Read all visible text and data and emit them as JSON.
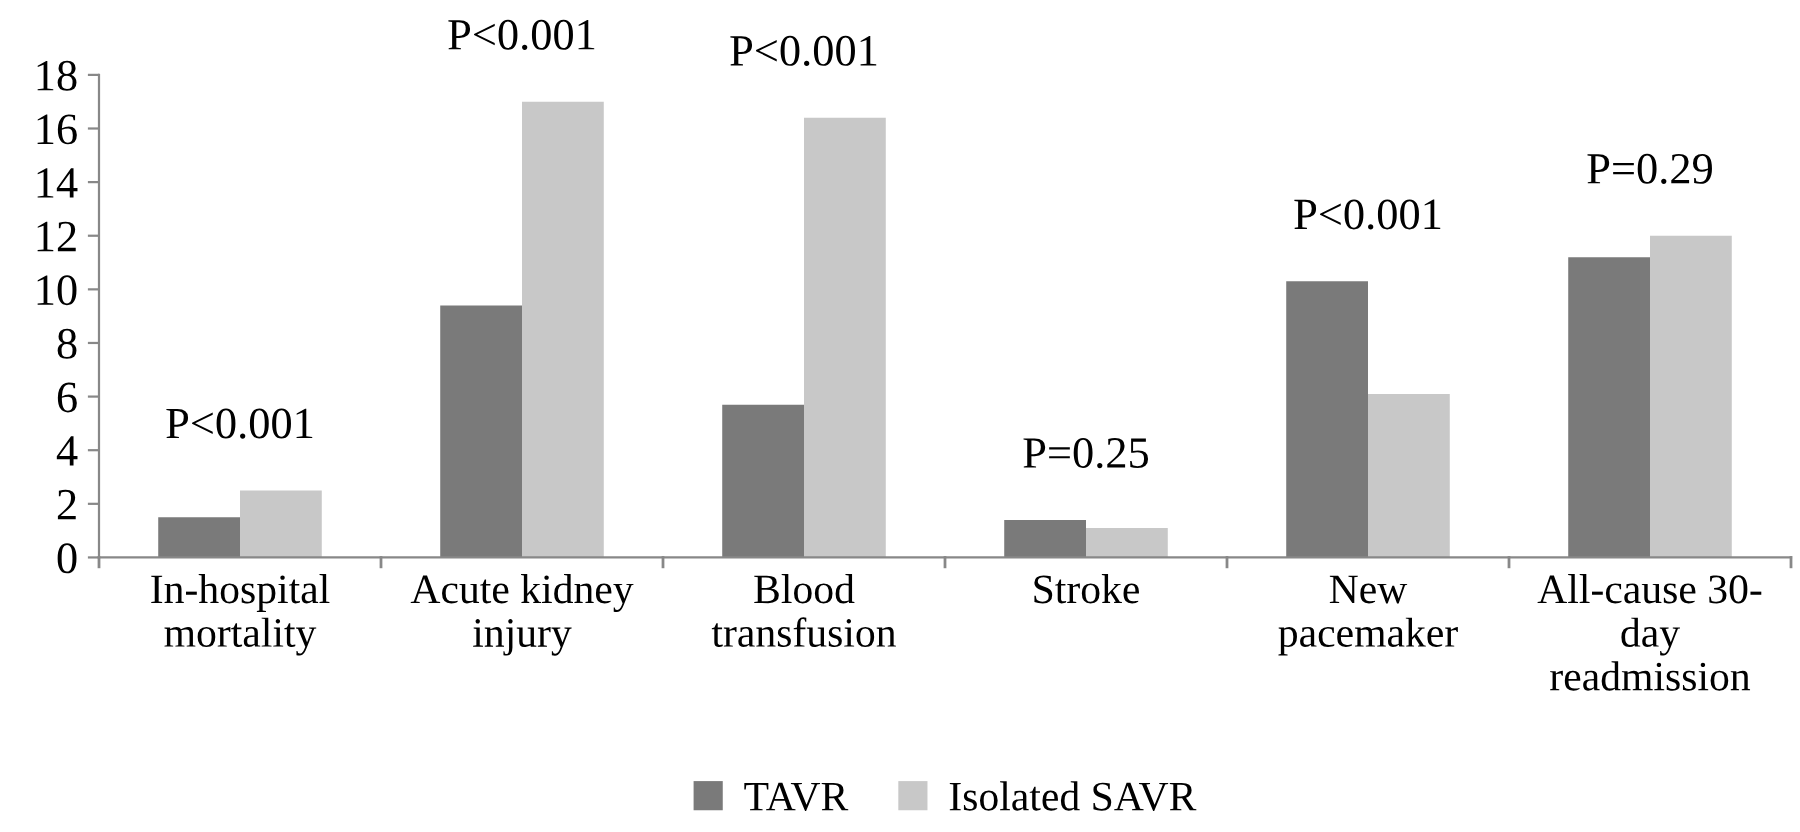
{
  "chart_data": {
    "type": "bar",
    "categories": [
      "In-hospital\nmortality",
      "Acute kidney\ninjury",
      "Blood\ntransfusion",
      "Stroke",
      "New\npacemaker",
      "All-cause 30-\nday\nreadmission"
    ],
    "series": [
      {
        "name": "TAVR",
        "color": "#7a7a7a",
        "values": [
          1.5,
          9.4,
          5.7,
          1.4,
          10.3,
          11.2
        ]
      },
      {
        "name": "Isolated SAVR",
        "color": "#c8c8c8",
        "values": [
          2.5,
          17.0,
          16.4,
          1.1,
          6.1,
          12.0
        ]
      }
    ],
    "annotations": [
      "P<0.001",
      "P<0.001",
      "P<0.001",
      "P=0.25",
      "P<0.001",
      "P=0.29"
    ],
    "ylim": [
      0,
      18
    ],
    "yticks": [
      0,
      2,
      4,
      6,
      8,
      10,
      12,
      14,
      16,
      18
    ],
    "grid": false,
    "legend": "bottom"
  }
}
